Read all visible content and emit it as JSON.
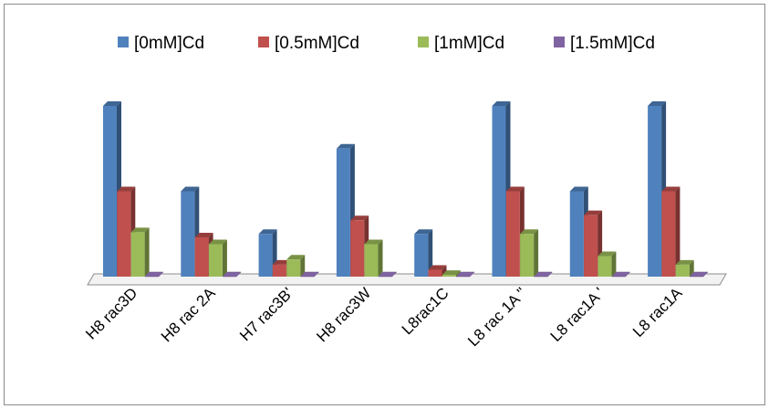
{
  "chart_data": {
    "type": "bar",
    "style": "3d-clustered-column",
    "categories": [
      "H8 rac3D",
      "H8 rac 2A",
      "H7 rac3B'",
      "H8 rac3W",
      "L8rac1C",
      "L8 rac 1A \"",
      "L8 rac1A '",
      "L8 rac1A"
    ],
    "series": [
      {
        "name": "[0mM]Cd",
        "color": "#4F81BD",
        "values": [
          100,
          50,
          25,
          75,
          25,
          100,
          50,
          100
        ]
      },
      {
        "name": "[0.5mM]Cd",
        "color": "#C0504D",
        "values": [
          50,
          23,
          7,
          33,
          4,
          50,
          36,
          50
        ]
      },
      {
        "name": "[1mM]Cd",
        "color": "#9BBB59",
        "values": [
          26,
          19,
          10,
          19,
          1,
          25,
          12,
          7
        ]
      },
      {
        "name": "[1.5mM]Cd",
        "color": "#8064A2",
        "values": [
          0,
          0,
          0,
          0,
          0,
          0,
          0,
          0
        ]
      }
    ],
    "title": "",
    "xlabel": "",
    "ylabel": "",
    "ylim": [
      0,
      100
    ],
    "grid": false,
    "legend": "top"
  }
}
